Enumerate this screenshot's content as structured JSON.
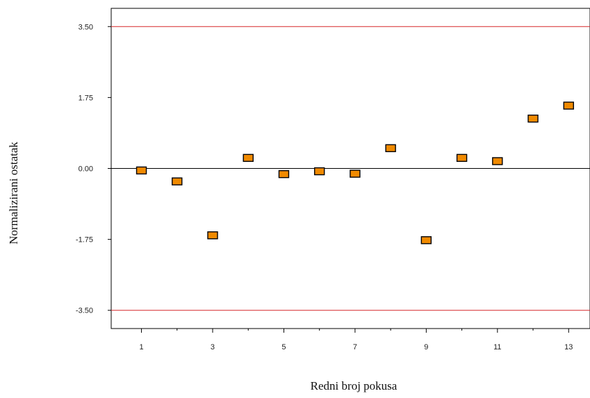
{
  "chart_data": {
    "type": "scatter",
    "title": "",
    "xlabel": "Redni broj pokusa",
    "ylabel": "Normalizirani ostatak",
    "xlim": [
      0.15,
      13.6
    ],
    "ylim": [
      -3.95,
      3.95
    ],
    "x_ticks": [
      "1",
      "3",
      "5",
      "7",
      "9",
      "11",
      "13"
    ],
    "x_minor_ticks": [
      2,
      4,
      6,
      8,
      10,
      12
    ],
    "y_ticks": [
      "3.50",
      "1.75",
      "0.00",
      "-1.75",
      "-3.50"
    ],
    "reference_lines": [
      {
        "y": 3.5,
        "color": "#d62728"
      },
      {
        "y": 0,
        "color": "#000000"
      },
      {
        "y": -3.5,
        "color": "#d62728"
      }
    ],
    "marker_color": "#f08a00",
    "points": [
      {
        "x": 1,
        "y": -0.05
      },
      {
        "x": 2,
        "y": -0.32
      },
      {
        "x": 3,
        "y": -1.65
      },
      {
        "x": 4,
        "y": 0.26
      },
      {
        "x": 5,
        "y": -0.14
      },
      {
        "x": 6,
        "y": -0.07
      },
      {
        "x": 7,
        "y": -0.13
      },
      {
        "x": 8,
        "y": 0.5
      },
      {
        "x": 9,
        "y": -1.77
      },
      {
        "x": 10,
        "y": 0.26
      },
      {
        "x": 11,
        "y": 0.18
      },
      {
        "x": 12,
        "y": 1.23
      },
      {
        "x": 13,
        "y": 1.55
      }
    ],
    "grid": false
  }
}
